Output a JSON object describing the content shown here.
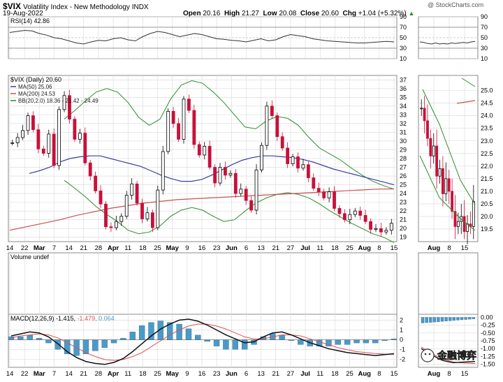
{
  "header": {
    "symbol": "$VIX",
    "name": "Volatility Index - New Methodology INDX",
    "watermark": "@ StockCharts.com",
    "date": "19-Aug-2022",
    "open_label": "Open",
    "open": "20.16",
    "high_label": "High",
    "high": "21.27",
    "low_label": "Low",
    "low": "20.08",
    "close_label": "Close",
    "close": "20.60",
    "chg_label": "Chg",
    "chg": "+1.04 (+5.32%)",
    "chg_arrow": "▲"
  },
  "colors": {
    "up": "#000000",
    "down": "#c8103a",
    "ma50": "#3a3fa0",
    "ma200": "#c85050",
    "bb": "#2e8b2e",
    "macd_hist": "#4a9ac8",
    "signal": "#e05050",
    "grid": "#d8d8d8"
  },
  "logo_text": "金融博弈",
  "chart_data": [
    {
      "type": "line",
      "panel": "rsi",
      "label": "RSI(14) 42.86",
      "y_ticks": [
        10,
        30,
        50,
        70,
        90
      ],
      "ylim": [
        10,
        90
      ],
      "values": [
        60,
        62,
        64,
        63,
        58,
        55,
        50,
        48,
        44,
        40,
        38,
        42,
        45,
        44,
        48,
        50,
        46,
        44,
        52,
        58,
        62,
        60,
        56,
        52,
        55,
        58,
        56,
        52,
        48,
        47,
        45,
        44,
        42,
        45,
        48,
        44,
        46,
        52,
        56,
        54,
        52,
        48,
        46,
        44,
        43,
        42,
        41,
        40,
        40,
        41,
        42,
        43,
        42
      ]
    },
    {
      "type": "candlestick",
      "panel": "price",
      "label": "$VIX (Daily) 20.60",
      "ma50_label": "MA(50) 25.06",
      "ma200_label": "MA(200) 24.53",
      "bb_label": "BB(20,2.0) 18.36 - 21.42 - 24.49",
      "ylim": [
        18.5,
        37.5
      ],
      "y_ticks": [
        19,
        20,
        21,
        22,
        23,
        24,
        25,
        26,
        27,
        28,
        29,
        30,
        31,
        32,
        33,
        34,
        35,
        36,
        37
      ],
      "x_ticks": [
        "14",
        "22",
        "Mar",
        "7",
        "14",
        "21",
        "28",
        "Apr",
        "11",
        "18",
        "25",
        "May",
        "9",
        "16",
        "23",
        "Jun",
        "6",
        "13",
        "21",
        "27",
        "Jul",
        "11",
        "18",
        "25",
        "Aug",
        "8",
        "15"
      ],
      "closes": [
        29.8,
        30.4,
        31.2,
        32.9,
        31.3,
        29.1,
        28.6,
        30.8,
        27.2,
        33.6,
        35.2,
        32.5,
        30.2,
        30.9,
        27.5,
        26.0,
        24.3,
        22.8,
        20.2,
        20.1,
        20.8,
        21.4,
        23.8,
        25.1,
        22.9,
        21.1,
        21.8,
        20.1,
        24.4,
        28.8,
        33.4,
        32.0,
        30.2,
        34.8,
        33.5,
        29.6,
        28.4,
        29.4,
        27.0,
        25.2,
        27.0,
        26.1,
        26.3,
        24.0,
        24.5,
        23.2,
        22.1,
        26.7,
        29.5,
        34.0,
        32.9,
        30.5,
        29.2,
        27.4,
        28.2,
        26.9,
        27.3,
        25.8,
        24.6,
        24.2,
        23.5,
        24.2,
        22.3,
        21.7,
        21.0,
        21.6,
        22.0,
        21.5,
        20.8,
        19.9,
        20.0,
        19.6,
        19.8,
        20.6
      ],
      "ma50": [
        26.3,
        26.6,
        27.0,
        27.6,
        28.0,
        28.2,
        28.3,
        28.3,
        28.0,
        27.7,
        27.4,
        27.1,
        26.6,
        26.1,
        25.7,
        25.4,
        25.4,
        25.6,
        26.1,
        26.7,
        27.3,
        27.8,
        28.1,
        28.3,
        28.3,
        28.2,
        28.1,
        27.9,
        27.6,
        27.2,
        26.8,
        26.5,
        26.2,
        25.9,
        25.6,
        25.3,
        25.0
      ],
      "ma200": [
        19.8,
        20.2,
        20.6,
        21.0,
        21.5,
        21.9,
        22.3,
        22.6,
        22.9,
        23.1,
        23.3,
        23.4,
        23.5,
        23.6,
        23.7,
        23.8,
        23.9,
        24.0,
        24.1,
        24.2,
        24.3,
        24.4,
        24.5,
        24.53
      ],
      "bb_upper": [
        32.5,
        33.5,
        34.6,
        35.6,
        36.0,
        35.6,
        34.4,
        32.7,
        31.8,
        32.5,
        34.8,
        36.4,
        36.9,
        36.6,
        35.6,
        34.4,
        33.0,
        31.6,
        31.4,
        32.3,
        32.8,
        32.6,
        31.8,
        30.4,
        29.2,
        28.5,
        27.8,
        26.9,
        26.1,
        25.4,
        24.9,
        24.5
      ],
      "bb_lower": [
        25.5,
        24.6,
        23.6,
        22.5,
        21.6,
        20.8,
        19.8,
        19.4,
        19.6,
        20.3,
        21.4,
        22.1,
        22.4,
        22.1,
        21.4,
        20.8,
        21.0,
        22.0,
        22.9,
        23.5,
        23.9,
        24.1,
        23.9,
        23.5,
        22.8,
        22.0,
        21.3,
        20.6,
        20.0,
        19.4,
        19.0,
        18.4
      ]
    },
    {
      "type": "bar",
      "panel": "volume",
      "label": "Volume undef",
      "values": []
    },
    {
      "type": "line",
      "panel": "macd",
      "label": "MACD(12,26,9)",
      "macd_value": "-1.415",
      "signal_value": "-1.479",
      "hist_value": "0.064",
      "y_ticks": [
        -2,
        -1,
        0,
        1,
        2
      ],
      "ylim": [
        -2.8,
        2.6
      ],
      "macd": [
        0.4,
        0.6,
        0.8,
        0.7,
        0.3,
        -0.4,
        -1.2,
        -1.8,
        -2.2,
        -2.4,
        -2.5,
        -2.3,
        -1.9,
        -1.2,
        -0.4,
        0.4,
        1.1,
        1.6,
        2.0,
        2.1,
        1.9,
        1.5,
        1.0,
        0.5,
        0.1,
        -0.3,
        -0.2,
        0.3,
        0.7,
        0.8,
        0.5,
        0.1,
        -0.3,
        -0.6,
        -0.9,
        -1.1,
        -1.3,
        -1.4,
        -1.5,
        -1.6,
        -1.5,
        -1.415
      ],
      "signal": [
        0.2,
        0.4,
        0.5,
        0.6,
        0.5,
        0.2,
        -0.3,
        -0.8,
        -1.3,
        -1.7,
        -2.0,
        -2.1,
        -2.0,
        -1.7,
        -1.3,
        -0.7,
        -0.1,
        0.5,
        1.0,
        1.4,
        1.6,
        1.6,
        1.4,
        1.1,
        0.7,
        0.3,
        0.1,
        0.1,
        0.3,
        0.5,
        0.5,
        0.4,
        0.1,
        -0.2,
        -0.5,
        -0.8,
        -1.0,
        -1.2,
        -1.3,
        -1.4,
        -1.45,
        -1.479
      ]
    },
    {
      "type": "candlestick",
      "panel": "price-zoom",
      "y_ticks": [
        "19.5",
        "20.0",
        "20.5",
        "21.0",
        "21.5",
        "22.0",
        "22.5",
        "23.0",
        "23.5",
        "24.0",
        "24.5",
        "25.0"
      ],
      "ylim": [
        19.0,
        25.6
      ],
      "x_ticks": [
        "Aug",
        "8",
        "15"
      ],
      "closes": [
        24.3,
        23.8,
        23.1,
        22.4,
        22.8,
        21.6,
        21.9,
        20.9,
        21.5,
        21.0,
        20.2,
        19.6,
        19.8,
        20.0,
        19.4,
        19.7,
        19.6,
        20.6
      ]
    },
    {
      "type": "line",
      "panel": "rsi-zoom",
      "y_ticks": [
        10,
        30,
        50,
        70,
        90
      ],
      "ylim": [
        10,
        90
      ],
      "values": [
        42,
        41,
        39,
        38,
        40,
        38,
        39,
        38,
        40,
        39,
        40,
        41,
        40,
        42,
        43
      ]
    },
    {
      "type": "line",
      "panel": "macd-zoom",
      "y_ticks": [
        "0.00",
        "-0.25",
        "-0.50",
        "-0.75",
        "-1.00",
        "-1.25",
        "-1.50"
      ],
      "ylim": [
        -1.6,
        0.1
      ],
      "macd": [
        -1.0,
        -1.1,
        -1.2,
        -1.3,
        -1.38,
        -1.42,
        -1.45,
        -1.44,
        -1.43,
        -1.42,
        -1.415
      ],
      "signal": [
        -0.95,
        -1.05,
        -1.15,
        -1.25,
        -1.33,
        -1.39,
        -1.43,
        -1.45,
        -1.46,
        -1.47,
        -1.479
      ]
    }
  ]
}
